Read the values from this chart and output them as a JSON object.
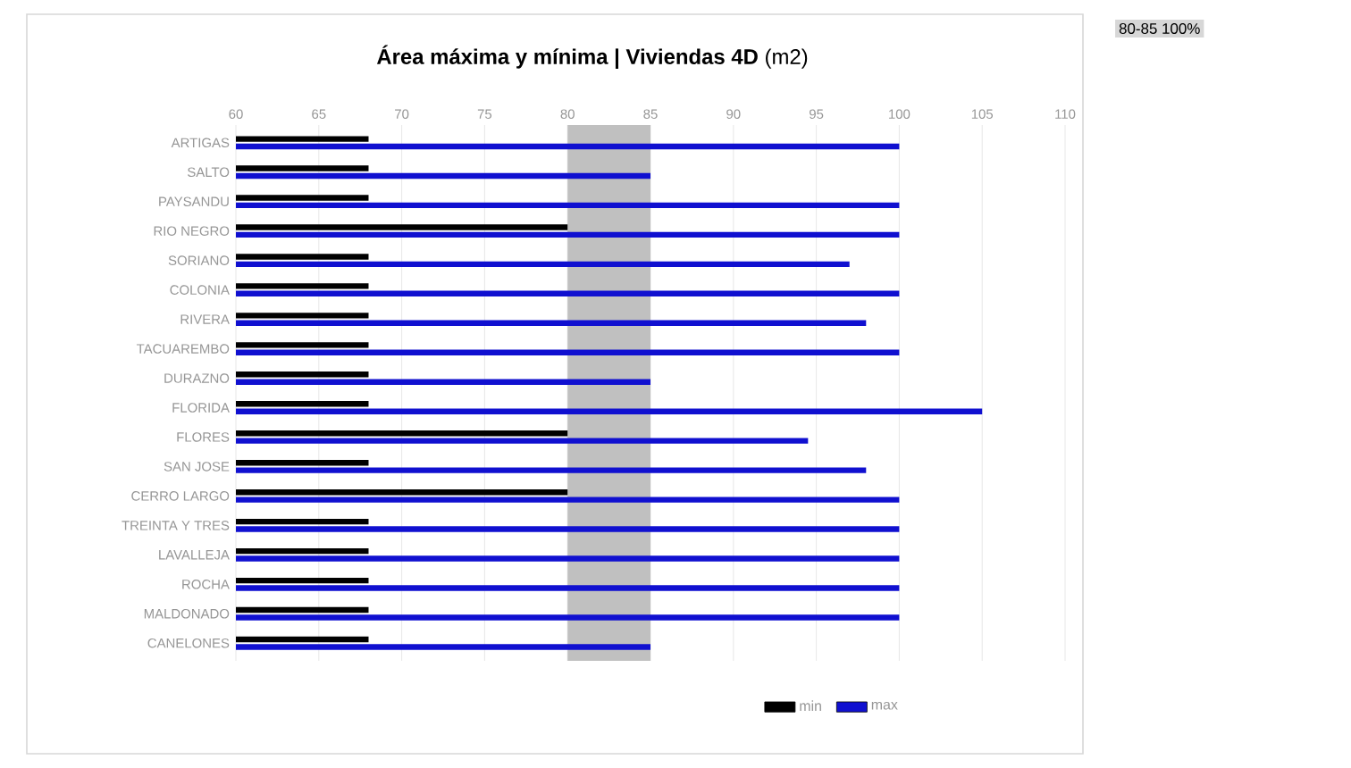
{
  "chart_data": {
    "type": "bar",
    "orientation": "horizontal",
    "title": "**Área máxima y mínima | Viviendas 4D** (m2)",
    "categories": [
      "ARTIGAS",
      "SALTO",
      "PAYSANDU",
      "RIO NEGRO",
      "SORIANO",
      "COLONIA",
      "RIVERA",
      "TACUAREMBO",
      "DURAZNO",
      "FLORIDA",
      "FLORES",
      "SAN JOSE",
      "CERRO LARGO",
      "TREINTA Y TRES",
      "LAVALLEJA",
      "ROCHA",
      "MALDONADO",
      "CANELONES"
    ],
    "series": [
      {
        "name": "min",
        "color": "#000000",
        "values": [
          68,
          68,
          68,
          80,
          68,
          68,
          68,
          68,
          68,
          68,
          80,
          68,
          80,
          68,
          68,
          68,
          68,
          68
        ]
      },
      {
        "name": "max",
        "color": "#1010d0",
        "values": [
          100,
          85,
          100,
          100,
          97,
          100,
          98,
          100,
          85,
          105,
          94.5,
          98,
          100,
          100,
          100,
          100,
          100,
          85
        ]
      }
    ],
    "xlim": [
      60,
      110
    ],
    "xticks": [
      60,
      65,
      70,
      75,
      80,
      85,
      90,
      95,
      100,
      105,
      110
    ],
    "bands": [
      {
        "axis": "x",
        "from": 80,
        "to": 85,
        "color": "#c0c0c0"
      }
    ],
    "annotations": [
      "80-85 100%"
    ],
    "grid": "x",
    "legend": "bottom"
  }
}
